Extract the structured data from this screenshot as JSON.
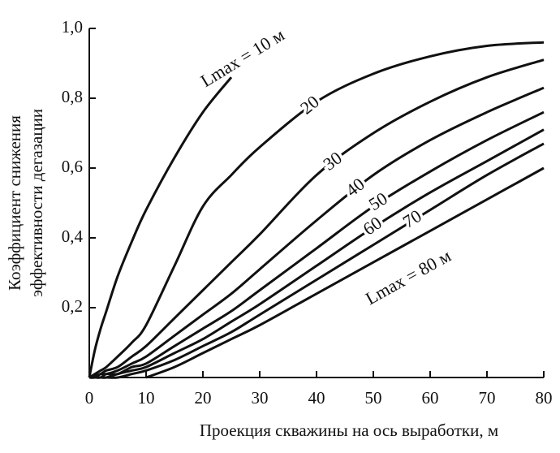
{
  "chart_data": {
    "type": "line",
    "xlabel": "Проекция скважины на ось выработки, м",
    "ylabel": [
      "Коэффициент снижения",
      "эффективности дегазации"
    ],
    "x": [
      0,
      1,
      2,
      3,
      5,
      7.5,
      10,
      15,
      20,
      25,
      30,
      40,
      50,
      60,
      70,
      80
    ],
    "series": [
      {
        "name": "Lmax = 10 м",
        "color": "#111111",
        "values": [
          0,
          0.08,
          0.14,
          0.19,
          0.29,
          0.39,
          0.48,
          0.63,
          0.76,
          0.86,
          null,
          null,
          null,
          null,
          null,
          null
        ]
      },
      {
        "name": "20",
        "color": "#111111",
        "values": [
          0,
          0.01,
          0.02,
          0.03,
          0.06,
          0.1,
          0.15,
          0.32,
          0.49,
          0.58,
          0.66,
          0.79,
          0.87,
          0.92,
          0.95,
          0.96
        ]
      },
      {
        "name": "30",
        "color": "#111111",
        "values": [
          0,
          0.005,
          0.01,
          0.02,
          0.03,
          0.06,
          0.09,
          0.17,
          0.25,
          0.33,
          0.41,
          0.58,
          0.7,
          0.79,
          0.86,
          0.91
        ]
      },
      {
        "name": "40",
        "color": "#111111",
        "values": [
          0,
          0,
          0.01,
          0.01,
          0.02,
          0.04,
          0.06,
          0.12,
          0.18,
          0.24,
          0.31,
          0.45,
          0.58,
          0.68,
          0.76,
          0.83
        ]
      },
      {
        "name": "50",
        "color": "#111111",
        "values": [
          0,
          0,
          0,
          0.01,
          0.01,
          0.03,
          0.04,
          0.09,
          0.14,
          0.19,
          0.25,
          0.37,
          0.49,
          0.59,
          0.68,
          0.76
        ]
      },
      {
        "name": "60",
        "color": "#111111",
        "values": [
          0,
          0,
          0,
          0,
          0.01,
          0.02,
          0.03,
          0.07,
          0.11,
          0.16,
          0.21,
          0.32,
          0.43,
          0.53,
          0.62,
          0.71
        ]
      },
      {
        "name": "70",
        "color": "#111111",
        "values": [
          0,
          0,
          0,
          0,
          0,
          0.01,
          0.02,
          0.05,
          0.09,
          0.13,
          0.18,
          0.28,
          0.38,
          0.48,
          0.58,
          0.67
        ]
      },
      {
        "name": "Lmax = 80 м",
        "color": "#111111",
        "values": [
          null,
          null,
          null,
          null,
          null,
          null,
          0,
          0.03,
          0.07,
          0.11,
          0.15,
          0.24,
          0.33,
          0.42,
          0.51,
          0.6
        ]
      }
    ],
    "xlim": [
      0,
      80
    ],
    "xticks": [
      0,
      10,
      20,
      30,
      40,
      50,
      60,
      70,
      80
    ],
    "ylim": [
      0,
      1.0
    ],
    "yticks": [
      {
        "value": 0.2,
        "label": "0,2"
      },
      {
        "value": 0.4,
        "label": "0,4"
      },
      {
        "value": 0.6,
        "label": "0,6"
      },
      {
        "value": 0.8,
        "label": "0,8"
      },
      {
        "value": 1.0,
        "label": "1,0"
      }
    ],
    "grid": false
  }
}
